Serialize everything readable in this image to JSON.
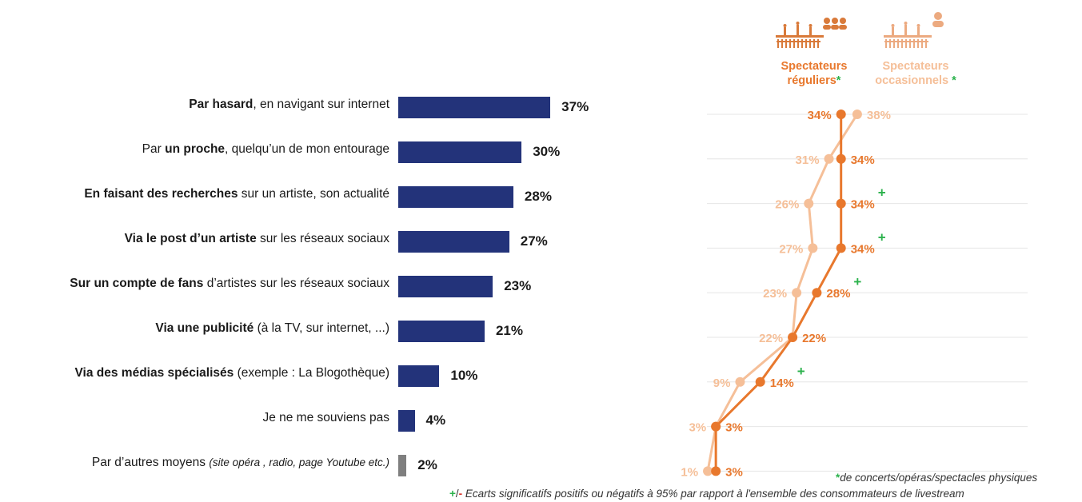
{
  "colors": {
    "bar": "#23337a",
    "bar_other": "#7f7f7f",
    "regular": "#e8782d",
    "occasional": "#f5bf98",
    "significant_plus": "#2bb24c",
    "significant_minus": "#d9342b",
    "grid": "#e6e6e6"
  },
  "legend": {
    "regular_line1": "Spectateurs",
    "regular_line2": "réguliers",
    "occasional_line1": "Spectateurs",
    "occasional_line2": "occasionnels",
    "star": "*",
    "regular_icon": "audience-group-icon",
    "occasional_icon": "audience-single-icon"
  },
  "footnotes": {
    "star_note_star": "*",
    "star_note_text": "de concerts/opéras/spectacles physiques",
    "sig_plus": "+",
    "sig_slash": "/",
    "sig_minus": "-",
    "sig_text": " Ecarts significatifs positifs ou négatifs à 95% par rapport à l'ensemble des consommateurs de livestream"
  },
  "chart_data": [
    {
      "type": "bar",
      "orientation": "horizontal",
      "categories": [
        {
          "bold": "Par hasard",
          "rest": ", en navigant sur internet",
          "bold_first": true
        },
        {
          "pre": "Par ",
          "bold": "un proche",
          "rest": ", quelqu’un de mon entourage"
        },
        {
          "bold": "En faisant des recherches",
          "rest": " sur un artiste, son actualité",
          "bold_first": true
        },
        {
          "bold": "Via le post d’un artiste",
          "rest": " sur les réseaux sociaux",
          "bold_first": true
        },
        {
          "bold": "Sur un compte de fans",
          "rest": " d’artistes sur les réseaux sociaux",
          "bold_first": true
        },
        {
          "bold": "Via une publicité",
          "rest": " (à la TV, sur internet, ...)",
          "bold_first": true
        },
        {
          "bold": "Via des médias spécialisés",
          "rest": " (exemple : La Blogothèque)",
          "bold_first": true
        },
        {
          "rest": "Je ne me souviens pas"
        },
        {
          "rest": "Par d’autres moyens ",
          "italic": "(site opéra , radio, page Youtube etc.)"
        }
      ],
      "values": [
        37,
        30,
        28,
        27,
        23,
        21,
        10,
        4,
        2
      ],
      "value_labels": [
        "37%",
        "30%",
        "28%",
        "27%",
        "23%",
        "21%",
        "10%",
        "4%",
        "2%"
      ],
      "unit": "%"
    },
    {
      "type": "line",
      "orientation": "vertical-categories",
      "series": [
        {
          "name": "Spectateurs réguliers*",
          "values": [
            34,
            34,
            34,
            34,
            28,
            22,
            14,
            3,
            3
          ],
          "labels": [
            "34%",
            "34%",
            "34%",
            "34%",
            "28%",
            "22%",
            "14%",
            "3%",
            "3%"
          ],
          "significant": [
            "",
            "",
            "+",
            "+",
            "+",
            "",
            "+",
            "",
            ""
          ]
        },
        {
          "name": "Spectateurs occasionnels*",
          "values": [
            38,
            31,
            26,
            27,
            23,
            22,
            9,
            3,
            1
          ],
          "labels": [
            "38%",
            "31%",
            "26%",
            "27%",
            "23%",
            "22%",
            "9%",
            "3%",
            "1%"
          ],
          "significant": [
            "",
            "",
            "",
            "",
            "",
            "",
            "",
            "",
            ""
          ]
        }
      ]
    }
  ]
}
